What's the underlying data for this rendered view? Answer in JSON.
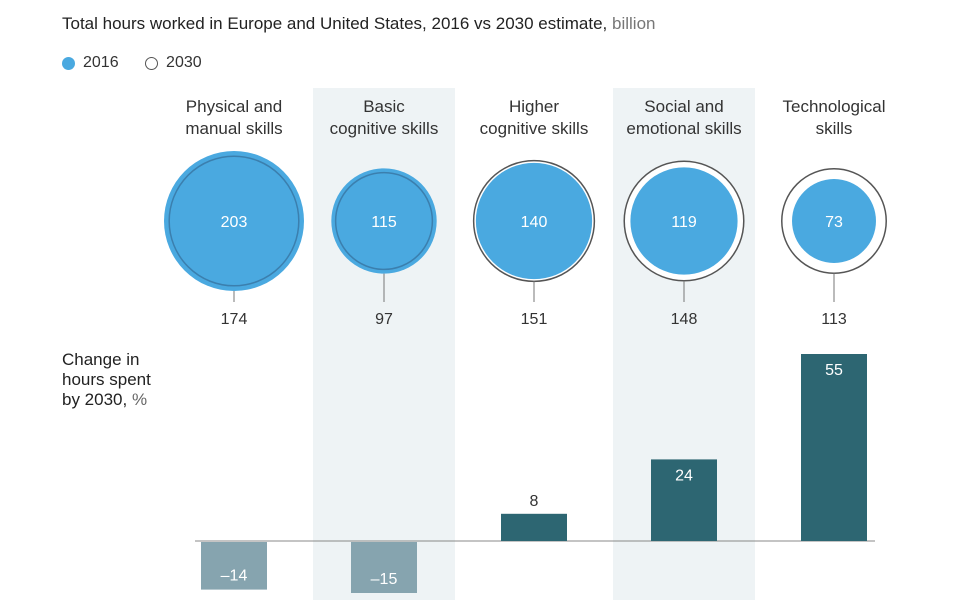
{
  "title": {
    "main": "Total hours worked in Europe and United States, 2016 vs 2030 estimate,",
    "unit": " billion"
  },
  "legend": [
    {
      "label": "2016",
      "color": "#4aa9e0"
    },
    {
      "label": "2030",
      "color": "#ffffff"
    }
  ],
  "side_label": {
    "line1": "Change in",
    "line2": "hours spent",
    "line3_main": "by 2030,",
    "line3_unit": " %"
  },
  "colors": {
    "blue": "#4aa9e0",
    "blue_dark_ring": "#3b7fae",
    "bar_positive": "#2d6672",
    "bar_negative": "#86a4af",
    "shade": "#eef3f5"
  },
  "chart_data": [
    {
      "type": "bubble",
      "title": "Total hours worked in Europe and United States, 2016 vs 2030 estimate, billion",
      "categories": [
        "Physical and manual skills",
        "Basic cognitive skills",
        "Higher cognitive skills",
        "Social and emotional skills",
        "Technological skills"
      ],
      "category_lines": [
        [
          "Physical and",
          "manual skills"
        ],
        [
          "Basic",
          "cognitive skills"
        ],
        [
          "Higher",
          "cognitive skills"
        ],
        [
          "Social and",
          "emotional skills"
        ],
        [
          "Technological",
          "skills"
        ]
      ],
      "series": [
        {
          "name": "2016",
          "values": [
            203,
            115,
            140,
            119,
            73
          ]
        },
        {
          "name": "2030",
          "values": [
            174,
            97,
            151,
            148,
            113
          ]
        }
      ],
      "value_labels_2016": [
        "203",
        "115",
        "140",
        "119",
        "73"
      ],
      "value_labels_2030": [
        "174",
        "97",
        "151",
        "148",
        "113"
      ]
    },
    {
      "type": "bar",
      "title": "Change in hours spent by 2030, %",
      "categories": [
        "Physical and manual skills",
        "Basic cognitive skills",
        "Higher cognitive skills",
        "Social and emotional skills",
        "Technological skills"
      ],
      "values": [
        -14,
        -15,
        8,
        24,
        55
      ],
      "labels": [
        "–14",
        "–15",
        "8",
        "24",
        "55"
      ]
    }
  ]
}
